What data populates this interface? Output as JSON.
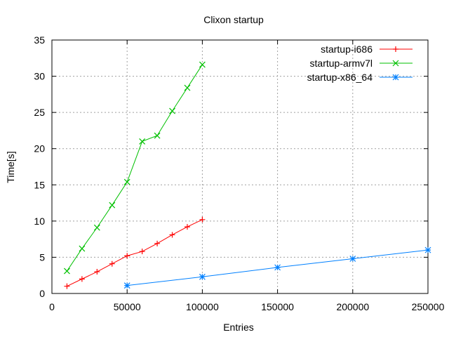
{
  "chart_data": {
    "type": "line",
    "title": "Clixon startup",
    "xlabel": "Entries",
    "ylabel": "Time[s]",
    "xlim": [
      0,
      250000
    ],
    "ylim": [
      0,
      35
    ],
    "xticks": [
      "0",
      "50000",
      "100000",
      "150000",
      "200000",
      "250000"
    ],
    "yticks": [
      "0",
      "5",
      "10",
      "15",
      "20",
      "25",
      "30",
      "35"
    ],
    "grid": true,
    "legend_position": "top-right",
    "series": [
      {
        "name": "startup-i686",
        "color": "#ff0000",
        "marker": "plus",
        "x": [
          10000,
          20000,
          30000,
          40000,
          50000,
          60000,
          70000,
          80000,
          90000,
          100000
        ],
        "y": [
          1.0,
          2.0,
          3.0,
          4.1,
          5.2,
          5.8,
          6.9,
          8.1,
          9.2,
          10.2
        ]
      },
      {
        "name": "startup-armv7l",
        "color": "#00c000",
        "marker": "cross",
        "x": [
          10000,
          20000,
          30000,
          40000,
          50000,
          60000,
          70000,
          80000,
          90000,
          100000
        ],
        "y": [
          3.1,
          6.2,
          9.1,
          12.2,
          15.4,
          21.0,
          21.8,
          25.2,
          28.4,
          31.6
        ]
      },
      {
        "name": "startup-x86_64",
        "color": "#0080ff",
        "marker": "star",
        "x": [
          50000,
          100000,
          150000,
          200000,
          250000
        ],
        "y": [
          1.1,
          2.3,
          3.6,
          4.8,
          6.0
        ]
      }
    ]
  }
}
